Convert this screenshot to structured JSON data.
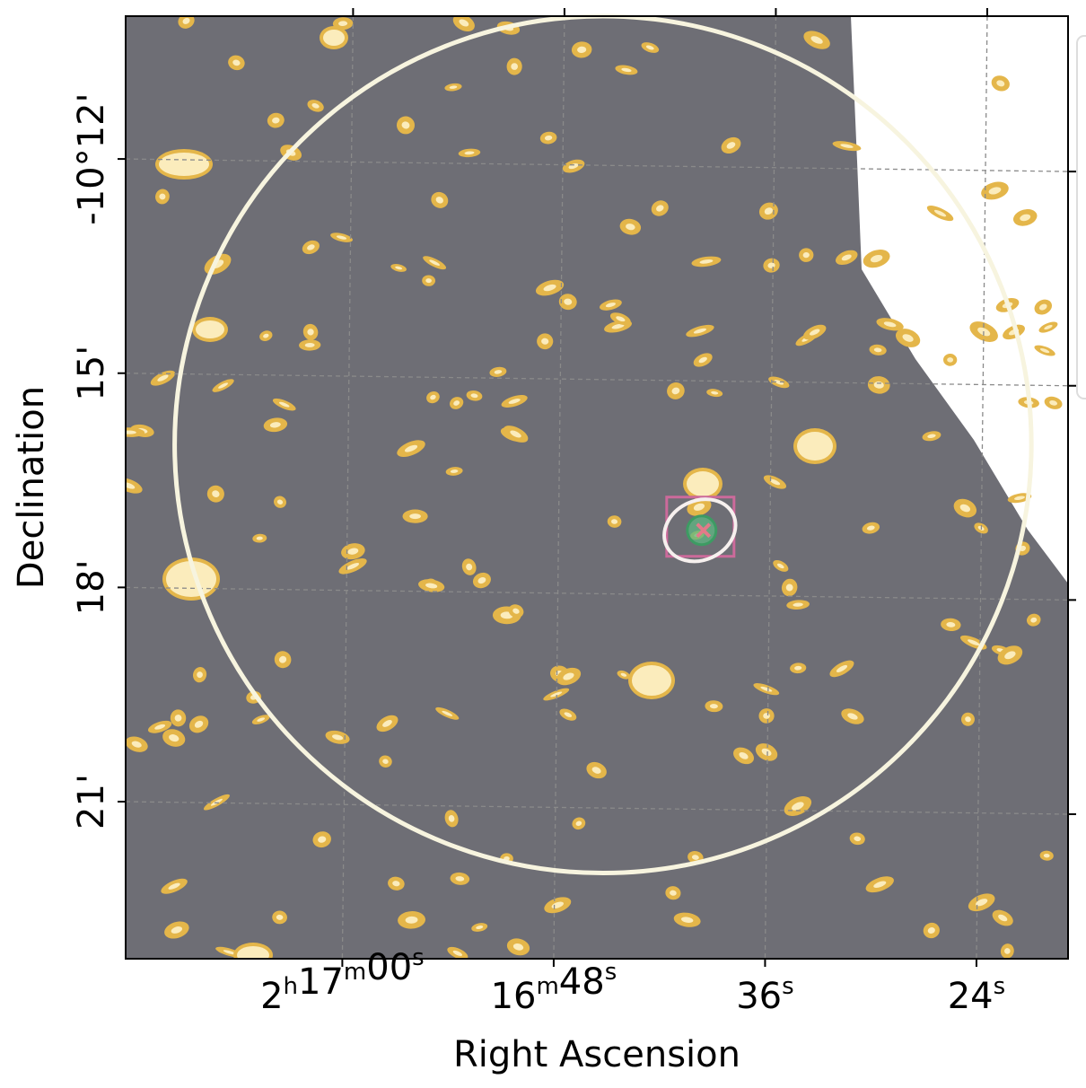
{
  "chart_data": {
    "type": "sky-image",
    "xlabel": "Right Ascension",
    "ylabel": "Declination",
    "ra_ticks": [
      {
        "ra_sec": 2220.0,
        "h": "2",
        "m": "17",
        "s": "00"
      },
      {
        "ra_sec": 2208.0,
        "h": "",
        "m": "16",
        "s": "48"
      },
      {
        "ra_sec": 2196.0,
        "h": "",
        "m": "",
        "s": "36"
      },
      {
        "ra_sec": 2184.0,
        "h": "",
        "m": "",
        "s": "24"
      }
    ],
    "dec_ticks": [
      {
        "dec_arcmin": -612,
        "label": "-10°12'"
      },
      {
        "dec_arcmin": -615,
        "label": "15'"
      },
      {
        "dec_arcmin": -618,
        "label": "18'"
      },
      {
        "dec_arcmin": -621,
        "label": "21'"
      }
    ],
    "ra_range_sec": [
      2232.3,
      2178.8
    ],
    "dec_range_arcmin": [
      -610.0,
      -623.2
    ],
    "grid": true,
    "colormap": [
      "#2a2a2e",
      "#2f3f6e",
      "#4a63a6",
      "#87b3a8",
      "#e4b64a",
      "#fbecbc"
    ],
    "overlays": [
      {
        "name": "large-circle",
        "ra_sec": 2205.2,
        "dec_arcmin": -616.0,
        "radius_arcmin": 6.0,
        "color": "#f7f4df"
      },
      {
        "name": "error-ellipse",
        "ra_sec": 2199.7,
        "dec_arcmin": -617.2,
        "color": "#f6f0ee"
      },
      {
        "name": "square-region",
        "ra_sec": 2199.7,
        "dec_arcmin": -617.2,
        "color": "#cc6a9b"
      },
      {
        "name": "green-marker",
        "ra_sec": 2199.6,
        "dec_arcmin": -617.2,
        "color": "#5fb883"
      },
      {
        "name": "cross-marker",
        "ra_sec": 2199.5,
        "dec_arcmin": -617.2,
        "color": "#e27a89"
      }
    ],
    "legend": {
      "position": "top-right",
      "entries": []
    }
  }
}
